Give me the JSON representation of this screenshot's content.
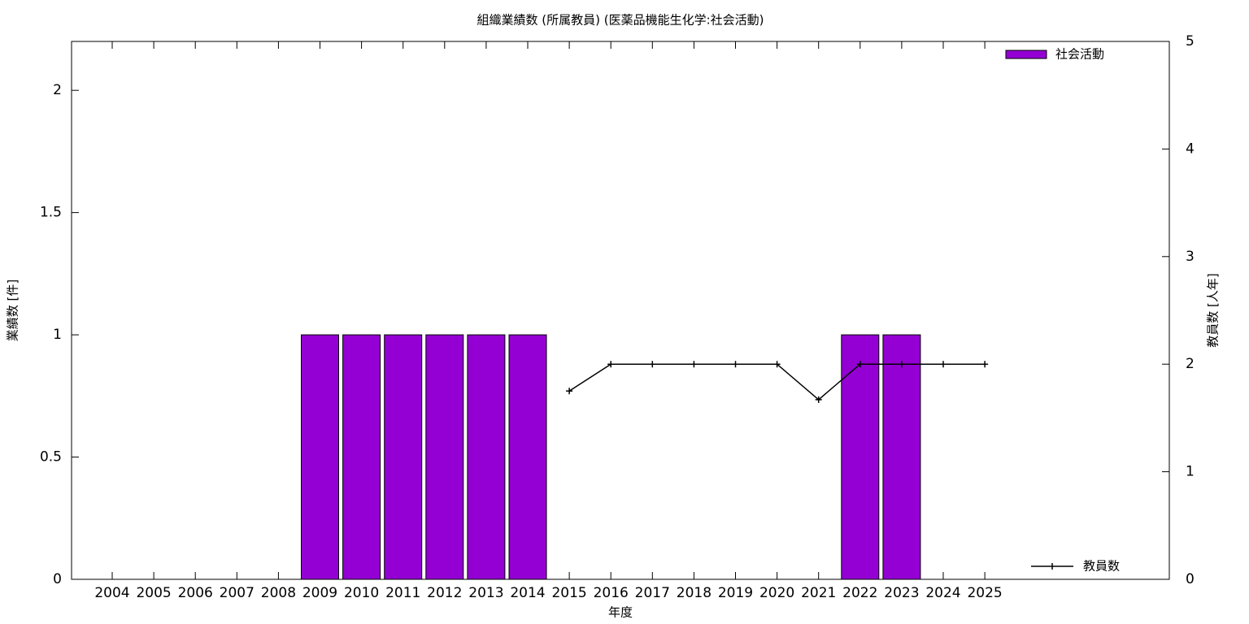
{
  "chart_data": {
    "type": "bar",
    "title": "組織業績数 (所属教員) (医薬品機能生化学:社会活動)",
    "xlabel": "年度",
    "ylabel": "業績数 [件]",
    "y2label": "教員数 [人年]",
    "categories": [
      "2004",
      "2005",
      "2006",
      "2007",
      "2008",
      "2009",
      "2010",
      "2011",
      "2012",
      "2013",
      "2014",
      "2015",
      "2016",
      "2017",
      "2018",
      "2019",
      "2020",
      "2021",
      "2022",
      "2023",
      "2024",
      "2025"
    ],
    "series": [
      {
        "name": "社会活動",
        "type": "bar",
        "color": "#9400d3",
        "values": [
          0,
          0,
          0,
          0,
          0,
          1,
          1,
          1,
          1,
          1,
          1,
          0,
          0,
          0,
          0,
          0,
          0,
          0,
          1,
          1,
          0,
          0
        ]
      },
      {
        "name": "教員数",
        "type": "line",
        "color": "#000000",
        "axis": "y2",
        "values": [
          null,
          null,
          null,
          null,
          null,
          null,
          null,
          null,
          null,
          null,
          null,
          1.75,
          2,
          2,
          2,
          2,
          2,
          1.67,
          2,
          2,
          2,
          2
        ]
      }
    ],
    "ylim": [
      0,
      2.2
    ],
    "yticks": [
      0,
      0.5,
      1,
      1.5,
      2
    ],
    "y2lim": [
      0,
      5
    ],
    "y2ticks": [
      0,
      1,
      2,
      3,
      4,
      5
    ]
  }
}
